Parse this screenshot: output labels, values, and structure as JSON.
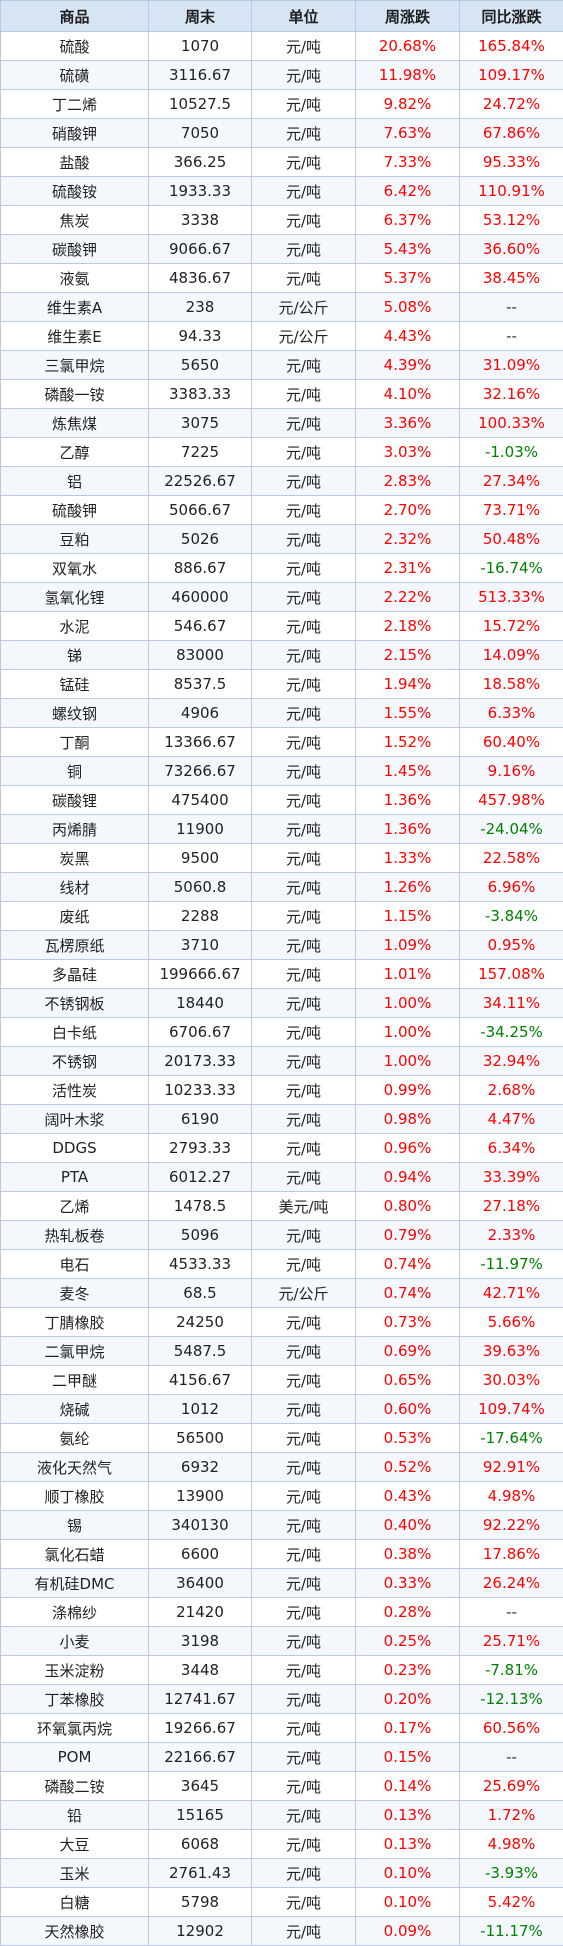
{
  "colors": {
    "up": "#ff0000",
    "down": "#008000",
    "header_bg": "#d7e4f4",
    "border": "#b8c9e4"
  },
  "table": {
    "headers": [
      "商品",
      "周末",
      "单位",
      "周涨跌",
      "同比涨跌"
    ],
    "rows": [
      [
        "硫酸",
        "1070",
        "元/吨",
        "20.68%",
        "165.84%"
      ],
      [
        "硫磺",
        "3116.67",
        "元/吨",
        "11.98%",
        "109.17%"
      ],
      [
        "丁二烯",
        "10527.5",
        "元/吨",
        "9.82%",
        "24.72%"
      ],
      [
        "硝酸钾",
        "7050",
        "元/吨",
        "7.63%",
        "67.86%"
      ],
      [
        "盐酸",
        "366.25",
        "元/吨",
        "7.33%",
        "95.33%"
      ],
      [
        "硫酸铵",
        "1933.33",
        "元/吨",
        "6.42%",
        "110.91%"
      ],
      [
        "焦炭",
        "3338",
        "元/吨",
        "6.37%",
        "53.12%"
      ],
      [
        "碳酸钾",
        "9066.67",
        "元/吨",
        "5.43%",
        "36.60%"
      ],
      [
        "液氨",
        "4836.67",
        "元/吨",
        "5.37%",
        "38.45%"
      ],
      [
        "维生素A",
        "238",
        "元/公斤",
        "5.08%",
        "--"
      ],
      [
        "维生素E",
        "94.33",
        "元/公斤",
        "4.43%",
        "--"
      ],
      [
        "三氯甲烷",
        "5650",
        "元/吨",
        "4.39%",
        "31.09%"
      ],
      [
        "磷酸一铵",
        "3383.33",
        "元/吨",
        "4.10%",
        "32.16%"
      ],
      [
        "炼焦煤",
        "3075",
        "元/吨",
        "3.36%",
        "100.33%"
      ],
      [
        "乙醇",
        "7225",
        "元/吨",
        "3.03%",
        "-1.03%"
      ],
      [
        "铝",
        "22526.67",
        "元/吨",
        "2.83%",
        "27.34%"
      ],
      [
        "硫酸钾",
        "5066.67",
        "元/吨",
        "2.70%",
        "73.71%"
      ],
      [
        "豆粕",
        "5026",
        "元/吨",
        "2.32%",
        "50.48%"
      ],
      [
        "双氧水",
        "886.67",
        "元/吨",
        "2.31%",
        "-16.74%"
      ],
      [
        "氢氧化锂",
        "460000",
        "元/吨",
        "2.22%",
        "513.33%"
      ],
      [
        "水泥",
        "546.67",
        "元/吨",
        "2.18%",
        "15.72%"
      ],
      [
        "锑",
        "83000",
        "元/吨",
        "2.15%",
        "14.09%"
      ],
      [
        "锰硅",
        "8537.5",
        "元/吨",
        "1.94%",
        "18.58%"
      ],
      [
        "螺纹钢",
        "4906",
        "元/吨",
        "1.55%",
        "6.33%"
      ],
      [
        "丁酮",
        "13366.67",
        "元/吨",
        "1.52%",
        "60.40%"
      ],
      [
        "铜",
        "73266.67",
        "元/吨",
        "1.45%",
        "9.16%"
      ],
      [
        "碳酸锂",
        "475400",
        "元/吨",
        "1.36%",
        "457.98%"
      ],
      [
        "丙烯腈",
        "11900",
        "元/吨",
        "1.36%",
        "-24.04%"
      ],
      [
        "炭黑",
        "9500",
        "元/吨",
        "1.33%",
        "22.58%"
      ],
      [
        "线材",
        "5060.8",
        "元/吨",
        "1.26%",
        "6.96%"
      ],
      [
        "废纸",
        "2288",
        "元/吨",
        "1.15%",
        "-3.84%"
      ],
      [
        "瓦楞原纸",
        "3710",
        "元/吨",
        "1.09%",
        "0.95%"
      ],
      [
        "多晶硅",
        "199666.67",
        "元/吨",
        "1.01%",
        "157.08%"
      ],
      [
        "不锈钢板",
        "18440",
        "元/吨",
        "1.00%",
        "34.11%"
      ],
      [
        "白卡纸",
        "6706.67",
        "元/吨",
        "1.00%",
        "-34.25%"
      ],
      [
        "不锈钢",
        "20173.33",
        "元/吨",
        "1.00%",
        "32.94%"
      ],
      [
        "活性炭",
        "10233.33",
        "元/吨",
        "0.99%",
        "2.68%"
      ],
      [
        "阔叶木浆",
        "6190",
        "元/吨",
        "0.98%",
        "4.47%"
      ],
      [
        "DDGS",
        "2793.33",
        "元/吨",
        "0.96%",
        "6.34%"
      ],
      [
        "PTA",
        "6012.27",
        "元/吨",
        "0.94%",
        "33.39%"
      ],
      [
        "乙烯",
        "1478.5",
        "美元/吨",
        "0.80%",
        "27.18%"
      ],
      [
        "热轧板卷",
        "5096",
        "元/吨",
        "0.79%",
        "2.33%"
      ],
      [
        "电石",
        "4533.33",
        "元/吨",
        "0.74%",
        "-11.97%"
      ],
      [
        "麦冬",
        "68.5",
        "元/公斤",
        "0.74%",
        "42.71%"
      ],
      [
        "丁腈橡胶",
        "24250",
        "元/吨",
        "0.73%",
        "5.66%"
      ],
      [
        "二氯甲烷",
        "5487.5",
        "元/吨",
        "0.69%",
        "39.63%"
      ],
      [
        "二甲醚",
        "4156.67",
        "元/吨",
        "0.65%",
        "30.03%"
      ],
      [
        "烧碱",
        "1012",
        "元/吨",
        "0.60%",
        "109.74%"
      ],
      [
        "氨纶",
        "56500",
        "元/吨",
        "0.53%",
        "-17.64%"
      ],
      [
        "液化天然气",
        "6932",
        "元/吨",
        "0.52%",
        "92.91%"
      ],
      [
        "顺丁橡胶",
        "13900",
        "元/吨",
        "0.43%",
        "4.98%"
      ],
      [
        "锡",
        "340130",
        "元/吨",
        "0.40%",
        "92.22%"
      ],
      [
        "氯化石蜡",
        "6600",
        "元/吨",
        "0.38%",
        "17.86%"
      ],
      [
        "有机硅DMC",
        "36400",
        "元/吨",
        "0.33%",
        "26.24%"
      ],
      [
        "涤棉纱",
        "21420",
        "元/吨",
        "0.28%",
        "--"
      ],
      [
        "小麦",
        "3198",
        "元/吨",
        "0.25%",
        "25.71%"
      ],
      [
        "玉米淀粉",
        "3448",
        "元/吨",
        "0.23%",
        "-7.81%"
      ],
      [
        "丁苯橡胶",
        "12741.67",
        "元/吨",
        "0.20%",
        "-12.13%"
      ],
      [
        "环氧氯丙烷",
        "19266.67",
        "元/吨",
        "0.17%",
        "60.56%"
      ],
      [
        "POM",
        "22166.67",
        "元/吨",
        "0.15%",
        "--"
      ],
      [
        "磷酸二铵",
        "3645",
        "元/吨",
        "0.14%",
        "25.69%"
      ],
      [
        "铅",
        "15165",
        "元/吨",
        "0.13%",
        "1.72%"
      ],
      [
        "大豆",
        "6068",
        "元/吨",
        "0.13%",
        "4.98%"
      ],
      [
        "玉米",
        "2761.43",
        "元/吨",
        "0.10%",
        "-3.93%"
      ],
      [
        "白糖",
        "5798",
        "元/吨",
        "0.10%",
        "5.42%"
      ],
      [
        "天然橡胶",
        "12902",
        "元/吨",
        "0.09%",
        "-11.17%"
      ]
    ]
  }
}
